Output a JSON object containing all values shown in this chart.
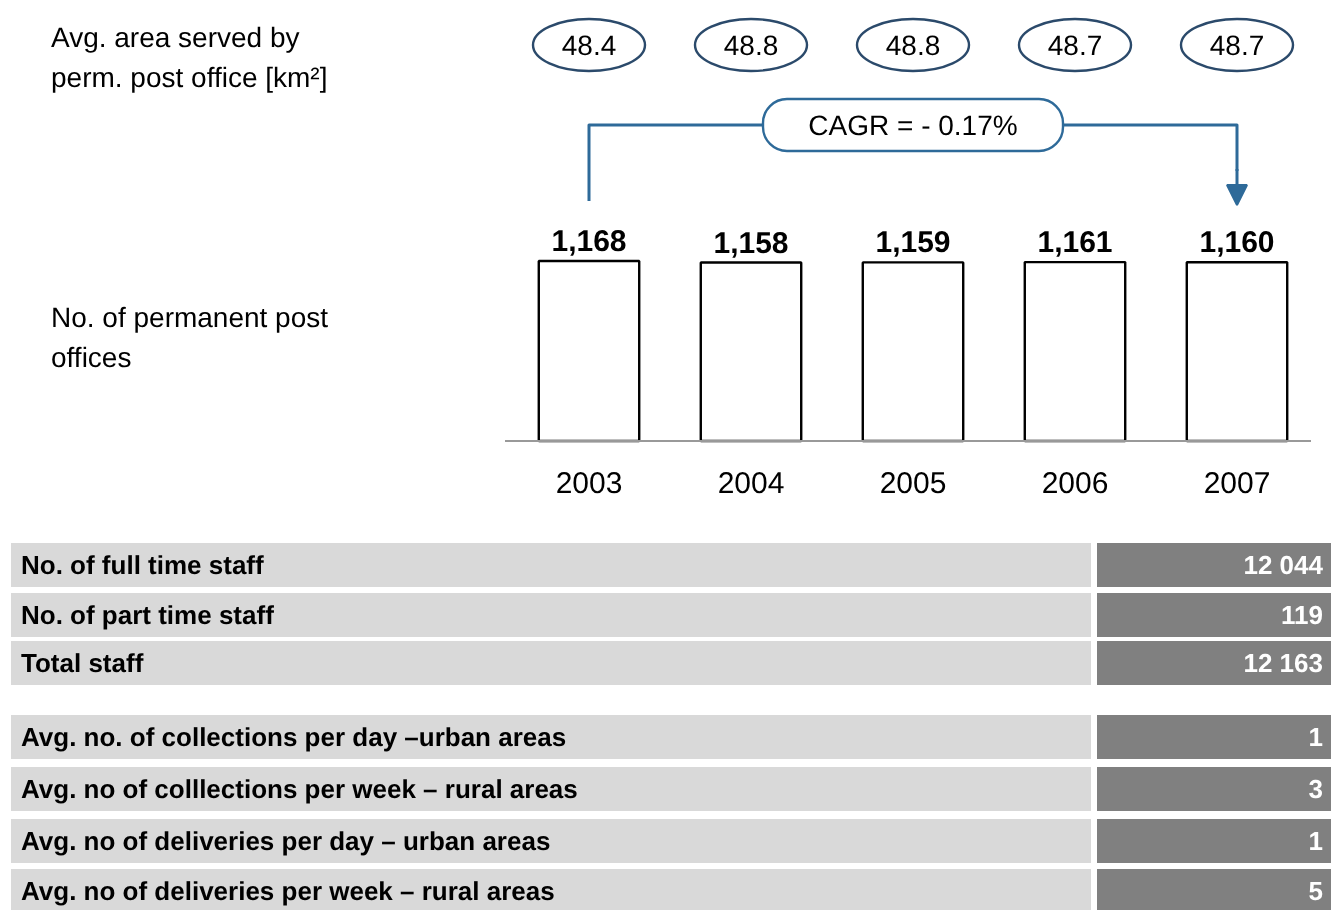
{
  "chart_data": {
    "type": "bar",
    "categories": [
      "2003",
      "2004",
      "2005",
      "2006",
      "2007"
    ],
    "values": [
      1168,
      1158,
      1159,
      1161,
      1160
    ],
    "color": "#ffffff",
    "value_labels": [
      "1,168",
      "1,158",
      "1,159",
      "1,161",
      "1,160"
    ],
    "annotations": [
      "Avg. area served by\nperm. post office [km²]",
      "No. of permanent post\noffices",
      "CAGR = - 0.17%",
      "48.4",
      "48.8",
      "48.8",
      "48.7",
      "48.7",
      "No. of full time staff",
      "12 044",
      "No. of part time staff",
      "119",
      "Total staff",
      "12 163",
      "Avg. no. of collections per day –urban areas",
      "1",
      "Avg. no of colllections per week – rural areas",
      "3",
      "Avg. no of deliveries per day – urban areas",
      "1",
      "Avg. no of deliveries per week – rural areas",
      "5"
    ]
  }
}
